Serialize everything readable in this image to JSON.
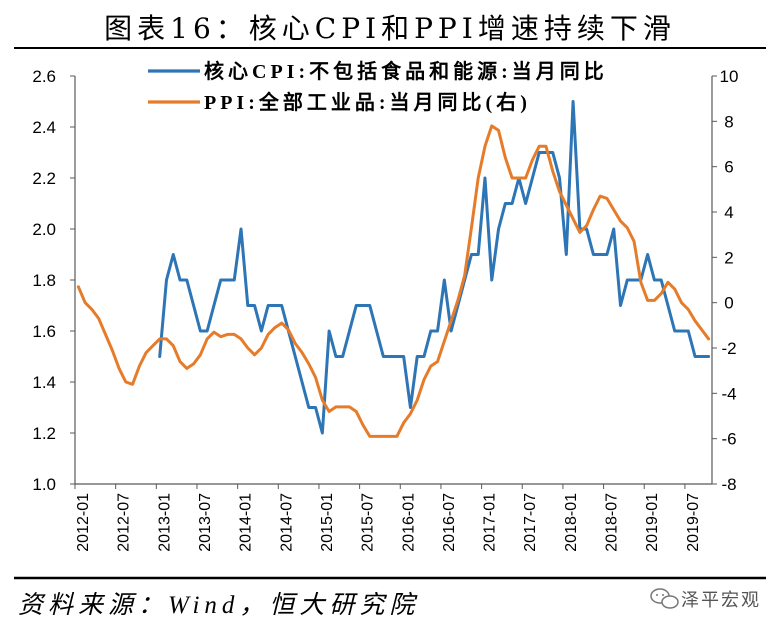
{
  "source": "资料来源：Wind，恒大研究院",
  "watermark": "泽平宏观",
  "colors": {
    "axis": "#595959",
    "rule": "#000000",
    "watermark": "#666666"
  },
  "chart_data": {
    "type": "line",
    "title": "图表16：核心CPI和PPI增速持续下滑",
    "grid": false,
    "legend_position": "top",
    "x_frequency": "monthly",
    "xtick_step": 6,
    "xticks": [
      "2012-01",
      "2012-07",
      "2013-01",
      "2013-07",
      "2014-01",
      "2014-07",
      "2015-01",
      "2015-07",
      "2016-01",
      "2016-07",
      "2017-01",
      "2017-07",
      "2018-01",
      "2018-07",
      "2019-01",
      "2019-07"
    ],
    "ylim": [
      1.0,
      2.6
    ],
    "yticks": [
      "2.6",
      "2.4",
      "2.2",
      "2.0",
      "1.8",
      "1.6",
      "1.4",
      "1.2",
      "1.0"
    ],
    "y2lim": [
      -8,
      10
    ],
    "y2ticks": [
      10,
      8,
      6,
      4,
      2,
      0,
      -2,
      -4,
      -6,
      -8
    ],
    "series": [
      {
        "name": "核心CPI:不包括食品和能源:当月同比",
        "axis": "left",
        "color": "#2E75B6",
        "values": [
          null,
          null,
          null,
          null,
          null,
          null,
          null,
          null,
          null,
          null,
          null,
          null,
          1.5,
          1.8,
          1.9,
          1.8,
          1.8,
          1.7,
          1.6,
          1.6,
          1.7,
          1.8,
          1.8,
          1.8,
          2.0,
          1.7,
          1.7,
          1.6,
          1.7,
          1.7,
          1.7,
          1.6,
          1.5,
          1.4,
          1.3,
          1.3,
          1.2,
          1.6,
          1.5,
          1.5,
          1.6,
          1.7,
          1.7,
          1.7,
          1.6,
          1.5,
          1.5,
          1.5,
          1.5,
          1.3,
          1.5,
          1.5,
          1.6,
          1.6,
          1.8,
          1.6,
          1.7,
          1.8,
          1.9,
          1.9,
          2.2,
          1.8,
          2.0,
          2.1,
          2.1,
          2.2,
          2.1,
          2.2,
          2.3,
          2.3,
          2.3,
          2.2,
          1.9,
          2.5,
          2.0,
          2.0,
          1.9,
          1.9,
          1.9,
          2.0,
          1.7,
          1.8,
          1.8,
          1.8,
          1.9,
          1.8,
          1.8,
          1.7,
          1.6,
          1.6,
          1.6,
          1.5,
          1.5,
          1.5
        ]
      },
      {
        "name": "PPI:全部工业品:当月同比(右)",
        "axis": "right",
        "color": "#E67C2A",
        "values": [
          0.7,
          0.0,
          -0.3,
          -0.7,
          -1.4,
          -2.1,
          -2.9,
          -3.5,
          -3.6,
          -2.8,
          -2.2,
          -1.9,
          -1.6,
          -1.6,
          -1.9,
          -2.6,
          -2.9,
          -2.7,
          -2.3,
          -1.6,
          -1.3,
          -1.5,
          -1.4,
          -1.4,
          -1.6,
          -2.0,
          -2.3,
          -2.0,
          -1.4,
          -1.1,
          -0.9,
          -1.2,
          -1.8,
          -2.2,
          -2.7,
          -3.3,
          -4.3,
          -4.8,
          -4.6,
          -4.6,
          -4.6,
          -4.8,
          -5.4,
          -5.9,
          -5.9,
          -5.9,
          -5.9,
          -5.9,
          -5.3,
          -4.9,
          -4.3,
          -3.4,
          -2.8,
          -2.6,
          -1.7,
          -0.8,
          0.1,
          1.2,
          3.3,
          5.5,
          6.9,
          7.8,
          7.6,
          6.4,
          5.5,
          5.5,
          5.5,
          6.3,
          6.9,
          6.9,
          5.8,
          4.9,
          4.3,
          3.7,
          3.1,
          3.4,
          4.1,
          4.7,
          4.6,
          4.1,
          3.6,
          3.3,
          2.7,
          0.9,
          0.1,
          0.1,
          0.4,
          0.9,
          0.6,
          0.0,
          -0.3,
          -0.8,
          -1.2,
          -1.6
        ]
      }
    ]
  }
}
